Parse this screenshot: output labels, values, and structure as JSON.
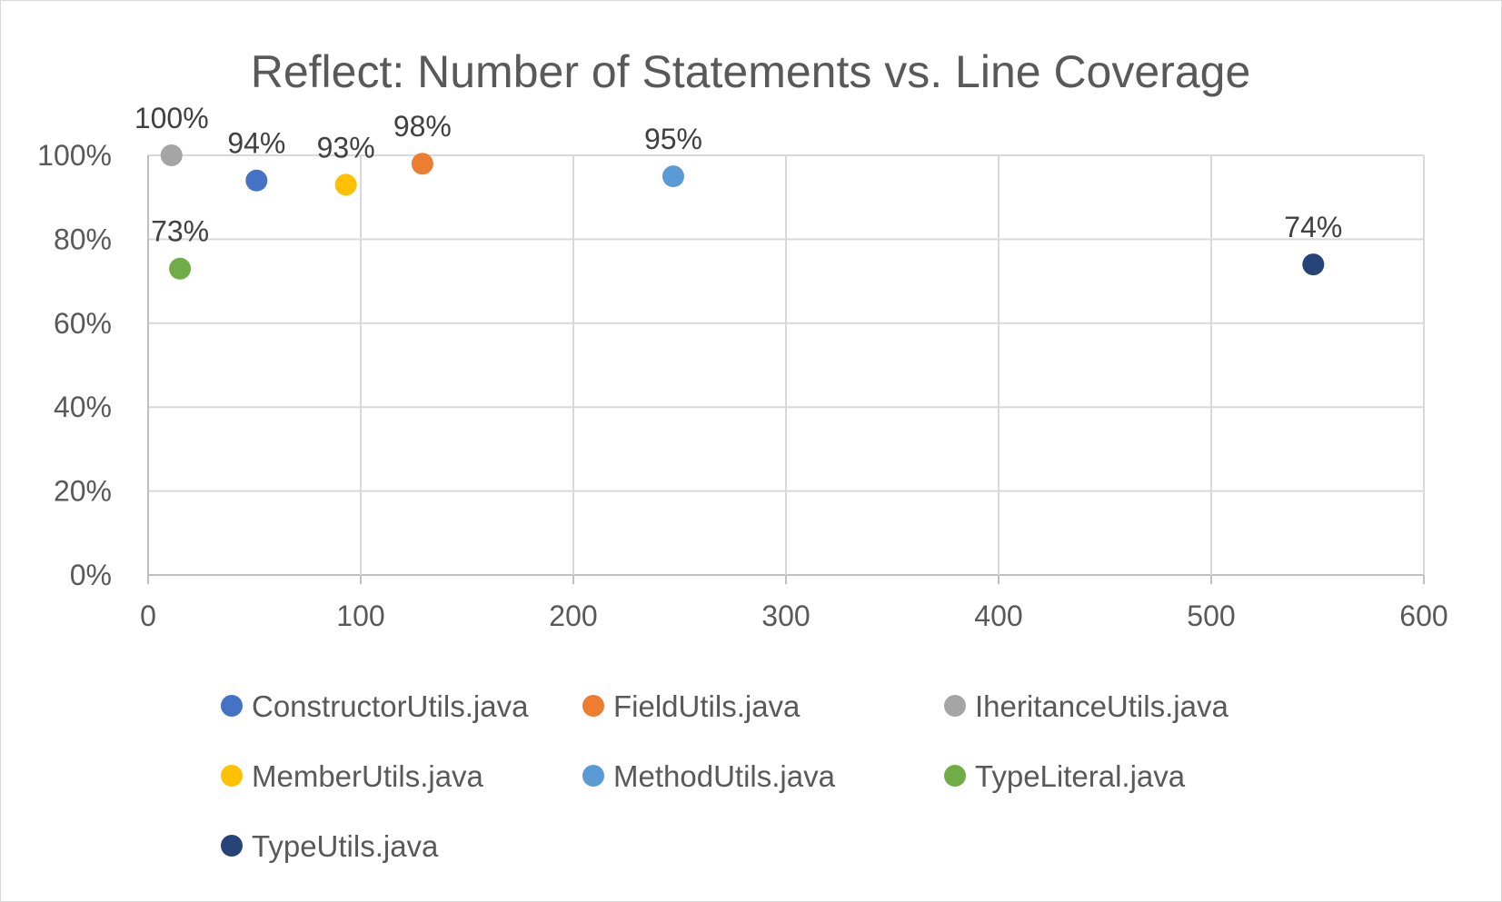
{
  "chart_data": {
    "type": "scatter",
    "title": "Reflect: Number of Statements vs. Line Coverage",
    "xlabel": "",
    "ylabel": "",
    "xlim": [
      0,
      600
    ],
    "ylim": [
      0,
      1
    ],
    "x_ticks": [
      "0",
      "100",
      "200",
      "300",
      "400",
      "500",
      "600"
    ],
    "y_ticks": [
      "0%",
      "20%",
      "40%",
      "60%",
      "80%",
      "100%"
    ],
    "grid": true,
    "legend": "bottom",
    "series": [
      {
        "name": "ConstructorUtils.java",
        "color": "#4472c4",
        "x": 51,
        "y": 0.94,
        "label": "94%"
      },
      {
        "name": "FieldUtils.java",
        "color": "#ed7d31",
        "x": 129,
        "y": 0.98,
        "label": "98%"
      },
      {
        "name": "IheritanceUtils.java",
        "color": "#a5a5a5",
        "x": 11,
        "y": 1.0,
        "label": "100%"
      },
      {
        "name": "MemberUtils.java",
        "color": "#ffc000",
        "x": 93,
        "y": 0.93,
        "label": "93%"
      },
      {
        "name": "MethodUtils.java",
        "color": "#5b9bd5",
        "x": 247,
        "y": 0.95,
        "label": "95%"
      },
      {
        "name": "TypeLiteral.java",
        "color": "#70ad47",
        "x": 15,
        "y": 0.73,
        "label": "73%"
      },
      {
        "name": "TypeUtils.java",
        "color": "#264478",
        "x": 548,
        "y": 0.74,
        "label": "74%"
      }
    ]
  }
}
